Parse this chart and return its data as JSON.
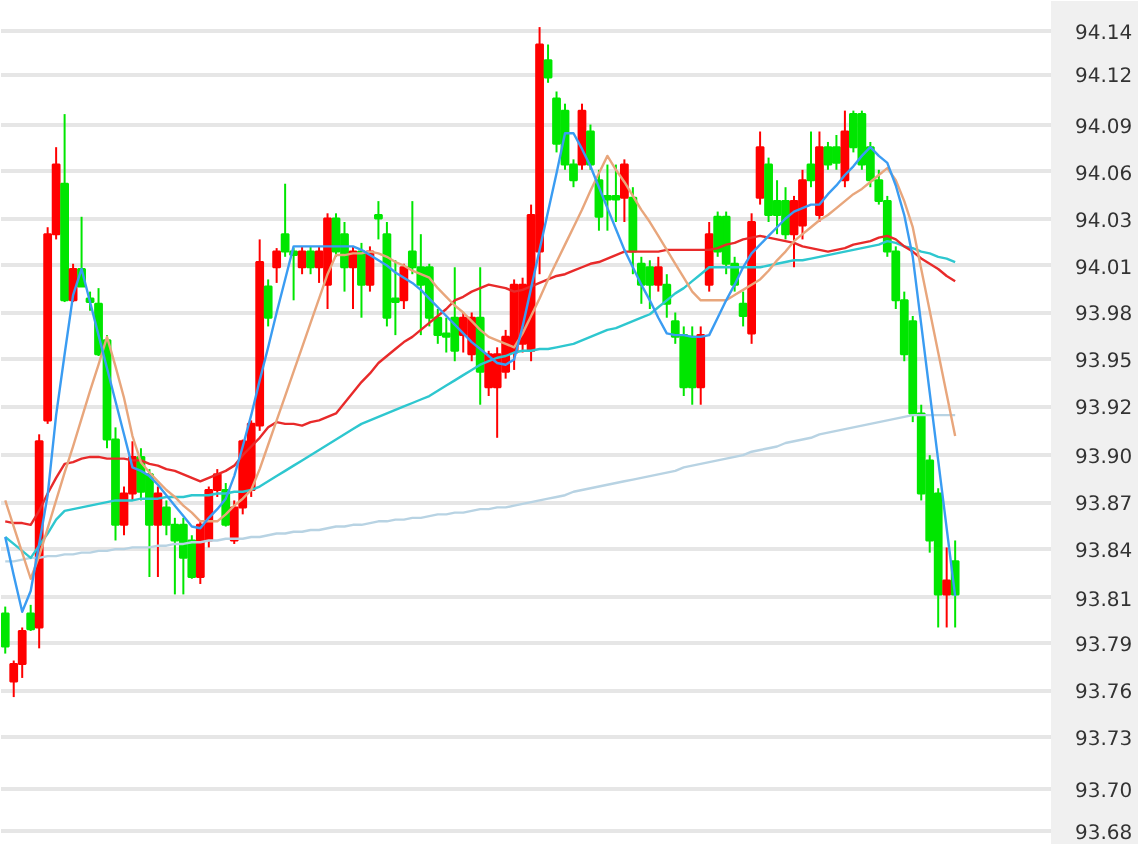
{
  "chart_data": {
    "type": "candlestick",
    "categories": [
      null,
      null,
      null,
      null,
      null,
      null,
      null,
      null,
      null,
      null,
      null,
      null,
      null,
      null,
      null,
      null,
      null,
      null,
      null,
      null,
      null,
      null,
      null,
      null,
      null,
      null,
      null,
      null,
      null,
      null,
      null,
      null,
      null,
      null,
      null,
      null,
      null,
      null,
      null,
      null,
      null,
      null,
      null,
      null,
      null,
      null,
      null,
      null,
      null,
      null,
      null,
      null,
      null,
      null,
      null,
      null,
      null,
      null,
      null,
      null,
      null,
      null,
      null,
      null,
      null,
      null,
      null,
      null,
      null,
      null,
      null,
      null,
      null,
      null,
      null,
      null,
      null,
      null,
      null,
      null,
      null,
      null,
      null,
      null,
      null,
      null,
      null,
      null,
      null,
      null,
      null,
      null,
      null,
      null,
      null,
      null,
      null,
      null,
      null,
      null,
      null,
      null,
      null,
      null,
      null,
      null,
      null,
      null,
      null,
      null,
      null,
      null,
      null
    ],
    "ylim": [
      93.672,
      94.157
    ],
    "yticks": [
      {
        "value": 94.14,
        "label": "94.14"
      },
      {
        "value": 94.115,
        "label": "94.12"
      },
      {
        "value": 94.086,
        "label": "94.09"
      },
      {
        "value": 94.059,
        "label": "94.06"
      },
      {
        "value": 94.032,
        "label": "94.03"
      },
      {
        "value": 94.005,
        "label": "94.01"
      },
      {
        "value": 93.978,
        "label": "93.98"
      },
      {
        "value": 93.951,
        "label": "93.95"
      },
      {
        "value": 93.924,
        "label": "93.92"
      },
      {
        "value": 93.896,
        "label": "93.90"
      },
      {
        "value": 93.869,
        "label": "93.87"
      },
      {
        "value": 93.842,
        "label": "93.84"
      },
      {
        "value": 93.814,
        "label": "93.81"
      },
      {
        "value": 93.788,
        "label": "93.79"
      },
      {
        "value": 93.761,
        "label": "93.76"
      },
      {
        "value": 93.734,
        "label": "93.73"
      },
      {
        "value": 93.704,
        "label": "93.70"
      },
      {
        "value": 93.68,
        "label": "93.68"
      }
    ],
    "tick_labels": "y",
    "grid": "y",
    "series": [
      {
        "type": "line",
        "color": "#b8d3e3",
        "values": [
          93.835,
          93.835,
          93.836,
          93.837,
          93.837,
          93.838,
          93.838,
          93.839,
          93.839,
          93.84,
          93.84,
          93.841,
          93.841,
          93.842,
          93.842,
          93.843,
          93.843,
          93.843,
          93.844,
          93.844,
          93.845,
          93.845,
          93.846,
          93.846,
          93.847,
          93.847,
          93.848,
          93.848,
          93.848,
          93.849,
          93.849,
          93.85,
          93.851,
          93.851,
          93.852,
          93.852,
          93.853,
          93.853,
          93.854,
          93.855,
          93.855,
          93.856,
          93.856,
          93.857,
          93.858,
          93.858,
          93.859,
          93.859,
          93.86,
          93.86,
          93.861,
          93.862,
          93.862,
          93.863,
          93.863,
          93.864,
          93.865,
          93.865,
          93.866,
          93.866,
          93.867,
          93.868,
          93.869,
          93.87,
          93.871,
          93.872,
          93.873,
          93.875,
          93.876,
          93.877,
          93.878,
          93.879,
          93.88,
          93.881,
          93.882,
          93.883,
          93.884,
          93.885,
          93.886,
          93.887,
          93.889,
          93.89,
          93.891,
          93.892,
          93.893,
          93.894,
          93.895,
          93.896,
          93.898,
          93.899,
          93.9,
          93.901,
          93.903,
          93.904,
          93.905,
          93.906,
          93.908,
          93.909,
          93.91,
          93.911,
          93.912,
          93.913,
          93.914,
          93.915,
          93.916,
          93.917,
          93.918,
          93.919,
          93.919,
          93.919,
          93.919,
          93.919,
          93.919
        ]
      },
      {
        "type": "line",
        "color": "#2ec7cf",
        "values": [
          93.849,
          93.845,
          93.841,
          93.837,
          93.844,
          93.851,
          93.859,
          93.864,
          93.865,
          93.866,
          93.867,
          93.868,
          93.869,
          93.87,
          93.87,
          93.87,
          93.871,
          93.871,
          93.871,
          93.872,
          93.872,
          93.872,
          93.873,
          93.873,
          93.873,
          93.874,
          93.874,
          93.875,
          93.875,
          93.876,
          93.878,
          93.881,
          93.884,
          93.887,
          93.89,
          93.893,
          93.896,
          93.899,
          93.902,
          93.905,
          93.908,
          93.911,
          93.914,
          93.916,
          93.918,
          93.92,
          93.922,
          93.924,
          93.926,
          93.928,
          93.93,
          93.933,
          93.936,
          93.939,
          93.942,
          93.945,
          93.948,
          93.95,
          93.952,
          93.953,
          93.955,
          93.956,
          93.956,
          93.957,
          93.957,
          93.958,
          93.959,
          93.96,
          93.962,
          93.964,
          93.966,
          93.968,
          93.969,
          93.971,
          93.973,
          93.975,
          93.977,
          93.981,
          93.985,
          93.989,
          93.992,
          93.996,
          94.0,
          94.004,
          94.004,
          94.004,
          94.004,
          94.004,
          94.004,
          94.004,
          94.005,
          94.006,
          94.007,
          94.008,
          94.008,
          94.009,
          94.01,
          94.011,
          94.012,
          94.013,
          94.014,
          94.015,
          94.016,
          94.017,
          94.019,
          94.018,
          94.016,
          94.015,
          94.013,
          94.012,
          94.01,
          94.009,
          94.007
        ]
      },
      {
        "type": "line",
        "color": "#e82a2a",
        "values": [
          93.858,
          93.857,
          93.857,
          93.856,
          93.864,
          93.874,
          93.883,
          93.891,
          93.892,
          93.894,
          93.895,
          93.895,
          93.894,
          93.894,
          93.894,
          93.893,
          93.893,
          93.891,
          93.89,
          93.888,
          93.887,
          93.885,
          93.883,
          93.881,
          93.883,
          93.885,
          93.887,
          93.89,
          93.896,
          93.901,
          93.906,
          93.912,
          93.915,
          93.914,
          93.914,
          93.913,
          93.915,
          93.916,
          93.918,
          93.92,
          93.926,
          93.932,
          93.938,
          93.943,
          93.949,
          93.953,
          93.957,
          93.961,
          93.964,
          93.968,
          93.972,
          93.976,
          93.98,
          93.985,
          93.987,
          93.99,
          93.992,
          93.994,
          93.993,
          93.992,
          93.99,
          93.991,
          93.993,
          93.995,
          93.997,
          93.999,
          94.0,
          94.002,
          94.004,
          94.006,
          94.007,
          94.009,
          94.011,
          94.013,
          94.013,
          94.013,
          94.013,
          94.013,
          94.014,
          94.014,
          94.014,
          94.014,
          94.014,
          94.014,
          94.015,
          94.017,
          94.018,
          94.02,
          94.021,
          94.022,
          94.021,
          94.02,
          94.019,
          94.018,
          94.016,
          94.015,
          94.014,
          94.013,
          94.014,
          94.015,
          94.017,
          94.018,
          94.019,
          94.021,
          94.022,
          94.02,
          94.016,
          94.013,
          94.009,
          94.006,
          94.003,
          93.999,
          93.996
        ]
      },
      {
        "type": "line",
        "color": "#e8a67c",
        "values": [
          93.87,
          93.855,
          93.84,
          93.825,
          93.838,
          93.854,
          93.87,
          93.886,
          93.901,
          93.917,
          93.933,
          93.948,
          93.964,
          93.947,
          93.929,
          93.907,
          93.892,
          93.886,
          93.881,
          93.876,
          93.872,
          93.867,
          93.863,
          93.858,
          93.858,
          93.858,
          93.862,
          93.867,
          93.871,
          93.876,
          93.888,
          93.902,
          93.916,
          93.93,
          93.944,
          93.958,
          93.972,
          93.986,
          94.0,
          94.011,
          94.011,
          94.012,
          94.012,
          94.013,
          94.012,
          94.01,
          94.007,
          94.005,
          94.002,
          94.0,
          93.998,
          93.992,
          93.987,
          93.982,
          93.978,
          93.973,
          93.968,
          93.964,
          93.962,
          93.96,
          93.958,
          93.966,
          93.976,
          93.986,
          93.997,
          94.007,
          94.017,
          94.027,
          94.037,
          94.048,
          94.058,
          94.068,
          94.06,
          94.053,
          94.045,
          94.037,
          94.03,
          94.022,
          94.014,
          94.006,
          93.998,
          93.99,
          93.985,
          93.985,
          93.985,
          93.985,
          93.988,
          93.991,
          93.994,
          93.997,
          94.002,
          94.008,
          94.013,
          94.019,
          94.023,
          94.027,
          94.031,
          94.034,
          94.038,
          94.042,
          94.046,
          94.049,
          94.053,
          94.057,
          94.061,
          94.054,
          94.042,
          94.027,
          94.003,
          93.979,
          93.955,
          93.931,
          93.907
        ]
      },
      {
        "type": "line",
        "color": "#3a9cf2",
        "values": [
          93.849,
          93.827,
          93.806,
          93.818,
          93.845,
          93.873,
          93.919,
          93.954,
          93.988,
          94.003,
          93.984,
          93.965,
          93.946,
          93.927,
          93.908,
          93.889,
          93.887,
          93.884,
          93.879,
          93.873,
          93.867,
          93.861,
          93.855,
          93.854,
          93.86,
          93.865,
          93.871,
          93.884,
          93.901,
          93.919,
          93.939,
          93.958,
          93.978,
          93.997,
          94.016,
          94.016,
          94.016,
          94.016,
          94.016,
          94.016,
          94.016,
          94.016,
          94.014,
          94.011,
          94.008,
          94.005,
          94.001,
          93.998,
          93.995,
          93.991,
          93.986,
          93.981,
          93.976,
          93.971,
          93.966,
          93.961,
          93.957,
          93.953,
          93.949,
          93.948,
          93.951,
          93.97,
          93.992,
          94.014,
          94.036,
          94.058,
          94.081,
          94.081,
          94.072,
          94.062,
          94.05,
          94.038,
          94.026,
          94.014,
          94.004,
          93.994,
          93.985,
          93.975,
          93.966,
          93.965,
          93.965,
          93.964,
          93.964,
          93.965,
          93.975,
          93.985,
          93.994,
          94.004,
          94.012,
          94.017,
          94.022,
          94.027,
          94.032,
          94.036,
          94.038,
          94.04,
          94.04,
          94.046,
          94.051,
          94.057,
          94.062,
          94.068,
          94.073,
          94.068,
          94.064,
          94.051,
          94.034,
          94.01,
          93.971,
          93.932,
          93.893,
          93.854,
          93.815
        ]
      },
      {
        "ohlc": [
          [
            93.805,
            93.809,
            93.782,
            93.786
          ],
          [
            93.766,
            93.778,
            93.757,
            93.776
          ],
          [
            93.776,
            93.797,
            93.768,
            93.795
          ],
          [
            93.805,
            93.81,
            93.795,
            93.796
          ],
          [
            93.797,
            93.908,
            93.785,
            93.904
          ],
          [
            93.916,
            94.027,
            93.914,
            94.023
          ],
          [
            94.023,
            94.073,
            94.02,
            94.063
          ],
          [
            94.052,
            94.092,
            93.984,
            93.985
          ],
          [
            93.985,
            94.006,
            93.984,
            94.003
          ],
          [
            94.003,
            94.033,
            93.993,
            93.993
          ],
          [
            93.986,
            93.99,
            93.979,
            93.984
          ],
          [
            93.983,
            93.992,
            93.953,
            93.954
          ],
          [
            93.962,
            93.965,
            93.9,
            93.905
          ],
          [
            93.905,
            93.912,
            93.847,
            93.856
          ],
          [
            93.856,
            93.878,
            93.85,
            93.874
          ],
          [
            93.874,
            93.904,
            93.87,
            93.895
          ],
          [
            93.895,
            93.9,
            93.87,
            93.875
          ],
          [
            93.885,
            93.888,
            93.826,
            93.856
          ],
          [
            93.856,
            93.878,
            93.826,
            93.874
          ],
          [
            93.866,
            93.87,
            93.85,
            93.856
          ],
          [
            93.856,
            93.86,
            93.816,
            93.847
          ],
          [
            93.856,
            93.86,
            93.816,
            93.837
          ],
          [
            93.847,
            93.85,
            93.825,
            93.826
          ],
          [
            93.826,
            93.858,
            93.822,
            93.856
          ],
          [
            93.847,
            93.878,
            93.843,
            93.876
          ],
          [
            93.876,
            93.888,
            93.872,
            93.885
          ],
          [
            93.876,
            93.88,
            93.855,
            93.856
          ],
          [
            93.847,
            93.87,
            93.845,
            93.866
          ],
          [
            93.866,
            93.905,
            93.862,
            93.904
          ],
          [
            93.876,
            93.916,
            93.872,
            93.914
          ],
          [
            93.913,
            94.02,
            93.91,
            94.007
          ],
          [
            93.993,
            93.997,
            93.97,
            93.975
          ],
          [
            94.004,
            94.015,
            93.995,
            94.013
          ],
          [
            94.023,
            94.052,
            94.01,
            94.013
          ],
          [
            94.013,
            94.015,
            93.985,
            94.011
          ],
          [
            94.004,
            94.016,
            94.0,
            94.013
          ],
          [
            94.013,
            94.016,
            94.0,
            94.004
          ],
          [
            94.004,
            94.016,
            93.995,
            94.013
          ],
          [
            93.994,
            94.035,
            93.98,
            94.032
          ],
          [
            94.032,
            94.035,
            94.01,
            94.013
          ],
          [
            94.023,
            94.03,
            93.99,
            94.004
          ],
          [
            94.004,
            94.016,
            93.98,
            94.013
          ],
          [
            94.013,
            94.018,
            93.975,
            93.994
          ],
          [
            93.994,
            94.016,
            93.99,
            94.013
          ],
          [
            94.034,
            94.042,
            94.02,
            94.032
          ],
          [
            94.023,
            94.03,
            93.97,
            93.975
          ],
          [
            93.986,
            94.008,
            93.965,
            93.984
          ],
          [
            93.985,
            94.006,
            93.98,
            94.004
          ],
          [
            94.013,
            94.042,
            94.0,
            94.004
          ],
          [
            94.004,
            94.023,
            93.965,
            93.994
          ],
          [
            94.004,
            94.006,
            93.97,
            93.975
          ],
          [
            93.975,
            93.98,
            93.96,
            93.965
          ],
          [
            93.966,
            93.975,
            93.955,
            93.964
          ],
          [
            93.975,
            94.004,
            93.95,
            93.956
          ],
          [
            93.965,
            93.978,
            93.955,
            93.975
          ],
          [
            93.954,
            93.978,
            93.95,
            93.975
          ],
          [
            93.975,
            94.004,
            93.925,
            93.944
          ],
          [
            93.935,
            93.956,
            93.93,
            93.954
          ],
          [
            93.935,
            93.958,
            93.906,
            93.954
          ],
          [
            93.944,
            93.968,
            93.94,
            93.964
          ],
          [
            93.955,
            93.997,
            93.945,
            93.994
          ],
          [
            93.96,
            93.998,
            93.955,
            93.994
          ],
          [
            93.956,
            94.04,
            93.95,
            94.034
          ],
          [
            94.013,
            94.142,
            94.0,
            94.132
          ],
          [
            94.123,
            94.132,
            94.11,
            94.113
          ],
          [
            94.101,
            94.105,
            94.07,
            94.075
          ],
          [
            94.094,
            94.098,
            94.06,
            94.063
          ],
          [
            94.063,
            94.066,
            94.05,
            94.054
          ],
          [
            94.063,
            94.098,
            94.06,
            94.094
          ],
          [
            94.082,
            94.086,
            94.06,
            94.063
          ],
          [
            94.054,
            94.06,
            94.025,
            94.033
          ],
          [
            94.045,
            94.063,
            94.025,
            94.043
          ],
          [
            94.045,
            94.063,
            94.03,
            94.043
          ],
          [
            94.044,
            94.066,
            94.03,
            94.063
          ],
          [
            94.044,
            94.05,
            94.0,
            94.013
          ],
          [
            94.006,
            94.01,
            93.983,
            93.994
          ],
          [
            94.004,
            94.008,
            93.98,
            93.994
          ],
          [
            93.994,
            94.01,
            93.99,
            94.004
          ],
          [
            93.994,
            94.0,
            93.975,
            93.983
          ],
          [
            93.973,
            93.978,
            93.96,
            93.964
          ],
          [
            93.965,
            93.97,
            93.93,
            93.935
          ],
          [
            93.964,
            93.97,
            93.925,
            93.935
          ],
          [
            93.935,
            93.97,
            93.925,
            93.965
          ],
          [
            93.994,
            94.03,
            93.99,
            94.023
          ],
          [
            94.033,
            94.036,
            94.01,
            94.013
          ],
          [
            94.033,
            94.036,
            94.0,
            94.006
          ],
          [
            94.006,
            94.01,
            93.99,
            93.994
          ],
          [
            93.983,
            93.99,
            93.97,
            93.976
          ],
          [
            93.966,
            94.035,
            93.96,
            94.03
          ],
          [
            94.044,
            94.082,
            94.04,
            94.073
          ],
          [
            94.063,
            94.067,
            94.03,
            94.034
          ],
          [
            94.042,
            94.054,
            94.023,
            94.034
          ],
          [
            94.042,
            94.05,
            94.02,
            94.023
          ],
          [
            94.023,
            94.045,
            94.004,
            94.042
          ],
          [
            94.028,
            94.06,
            94.02,
            94.054
          ],
          [
            94.063,
            94.082,
            94.05,
            94.054
          ],
          [
            94.034,
            94.082,
            94.03,
            94.073
          ],
          [
            94.073,
            94.076,
            94.06,
            94.063
          ],
          [
            94.073,
            94.08,
            94.06,
            94.064
          ],
          [
            94.054,
            94.094,
            94.05,
            94.082
          ],
          [
            94.092,
            94.094,
            94.07,
            94.073
          ],
          [
            94.092,
            94.094,
            94.06,
            94.063
          ],
          [
            94.073,
            94.076,
            94.05,
            94.054
          ],
          [
            94.054,
            94.06,
            94.04,
            94.042
          ],
          [
            94.042,
            94.045,
            94.01,
            94.013
          ],
          [
            94.013,
            94.016,
            93.98,
            93.985
          ],
          [
            93.985,
            93.99,
            93.95,
            93.954
          ],
          [
            93.973,
            93.976,
            93.915,
            93.92
          ],
          [
            93.92,
            93.925,
            93.87,
            93.874
          ],
          [
            93.893,
            93.896,
            93.84,
            93.847
          ],
          [
            93.874,
            93.877,
            93.797,
            93.816
          ],
          [
            93.816,
            93.843,
            93.797,
            93.824
          ],
          [
            93.835,
            93.847,
            93.797,
            93.816
          ]
        ],
        "colors": [
          "#00e600",
          "#ff0000",
          "#ff0000",
          "#00e600",
          "#ff0000",
          "#ff0000",
          "#ff0000",
          "#00e600",
          "#ff0000",
          "#00e600",
          "#00e600",
          "#00e600",
          "#00e600",
          "#00e600",
          "#ff0000",
          "#ff0000",
          "#00e600",
          "#00e600",
          "#ff0000",
          "#00e600",
          "#00e600",
          "#00e600",
          "#00e600",
          "#ff0000",
          "#ff0000",
          "#ff0000",
          "#00e600",
          "#ff0000",
          "#ff0000",
          "#ff0000",
          "#ff0000",
          "#00e600",
          "#ff0000",
          "#00e600",
          "#00e600",
          "#ff0000",
          "#00e600",
          "#ff0000",
          "#ff0000",
          "#00e600",
          "#00e600",
          "#ff0000",
          "#00e600",
          "#ff0000",
          "#00e600",
          "#00e600",
          "#00e600",
          "#ff0000",
          "#00e600",
          "#00e600",
          "#00e600",
          "#00e600",
          "#00e600",
          "#00e600",
          "#ff0000",
          "#ff0000",
          "#00e600",
          "#ff0000",
          "#ff0000",
          "#ff0000",
          "#ff0000",
          "#ff0000",
          "#ff0000",
          "#ff0000",
          "#00e600",
          "#00e600",
          "#00e600",
          "#00e600",
          "#ff0000",
          "#00e600",
          "#00e600",
          "#00e600",
          "#00e600",
          "#ff0000",
          "#00e600",
          "#00e600",
          "#00e600",
          "#ff0000",
          "#00e600",
          "#00e600",
          "#00e600",
          "#00e600",
          "#ff0000",
          "#ff0000",
          "#00e600",
          "#00e600",
          "#00e600",
          "#00e600",
          "#ff0000",
          "#ff0000",
          "#00e600",
          "#00e600",
          "#00e600",
          "#ff0000",
          "#ff0000",
          "#00e600",
          "#ff0000",
          "#00e600",
          "#00e600",
          "#ff0000",
          "#00e600",
          "#00e600",
          "#00e600",
          "#00e600",
          "#00e600",
          "#00e600",
          "#00e600",
          "#00e600",
          "#00e600",
          "#00e600",
          "#00e600",
          "#ff0000",
          "#00e600"
        ]
      }
    ]
  }
}
